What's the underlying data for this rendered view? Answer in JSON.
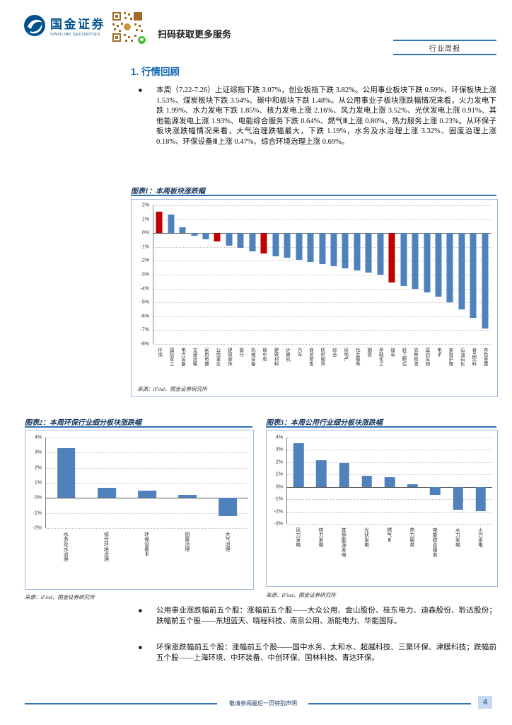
{
  "header": {
    "brand_cn": "国金证券",
    "brand_en": "SINOLINK SECURITIES",
    "qr_caption": "扫码获取更多服务",
    "report_type": "行业周报"
  },
  "section_title": "1. 行情回顾",
  "bullet_char": "■",
  "paragraphs": {
    "market_review": "本周（7.22-7.26）上证综指下跌 3.07%，创业板指下跌 3.82%。公用事业板块下跌 0.59%、环保板块上涨 1.53%、煤炭板块下跌 3.54%、碳中和板块下跌 1.48%。从公用事业子板块涨跌幅情况来看，火力发电下跌 1.99%、水力发电下跌 1.85%、核力发电上涨 2.16%、风力发电上涨 3.52%、光伏发电上涨 0.91%、其他能源发电上涨 1.93%、电能综合服务下跌 0.64%、燃气Ⅲ上涨 0.80%、热力服务上涨 0.23%。从环保子板块涨跌幅情况来看，大气治理跌幅最大，下跌 1.19%，水务及水治理上涨 3.32%、固废治理上涨 0.18%、环保设备Ⅲ上涨 0.47%、综合环境治理上涨 0.69%。",
    "utilities_stocks": "公用事业涨跌幅前五个股：涨幅前五个股——大众公用、金山股份、桂东电力、迪森股份、聆达股份；跌幅前五个股——东旭蓝天、晓程科技、南京公用、浙能电力、华能国际。",
    "environment_stocks": "环保涨跌幅前五个股：涨幅前五个股——国中水务、太和水、超越科技、三聚环保、津膜科技；跌幅前五个股——上海环境、中环装备、中创环保、国林科技、青达环保。"
  },
  "figures": {
    "fig1_title": "图表1：本周板块涨跌幅",
    "fig2_title": "图表2：本周环保行业细分板块涨跌幅",
    "fig3_title": "图表3：本周公用行业细分板块涨跌幅",
    "source": "来源：iFind，国金证券研究所"
  },
  "footer": {
    "disclaimer": "敬请参阅最后一页特别声明",
    "page_number": "4"
  },
  "colors": {
    "bar_blue": "#4F81BD",
    "bar_red": "#C00000",
    "accent_blue": "#2E74B5",
    "brand_blue": "#00508C"
  },
  "chart_data": [
    {
      "id": "fig1",
      "type": "bar",
      "title": "本周板块涨跌幅",
      "ylim": [
        -8,
        2
      ],
      "yticks": [
        2,
        1,
        0,
        -1,
        -2,
        -3,
        -4,
        -5,
        -6,
        -7,
        -8
      ],
      "grid": true,
      "legend": false,
      "categories": [
        "环保",
        "国防军工",
        "电力设备",
        "交通运输",
        "家用电器",
        "公用事业",
        "建筑装饰",
        "银行",
        "机械设备",
        "碳中和",
        "建筑材料",
        "计算机",
        "汽车",
        "商贸零售",
        "纺织服饰",
        "综合",
        "房地产",
        "社会服务",
        "钢铁",
        "基础化工",
        "煤炭",
        "轻工制造",
        "农林牧渔",
        "医药生物",
        "电子",
        "美容护理",
        "石油石化",
        "食品饮料",
        "有色金属"
      ],
      "values": [
        1.53,
        1.35,
        0.4,
        -0.2,
        -0.45,
        -0.59,
        -0.9,
        -1.05,
        -1.3,
        -1.48,
        -1.65,
        -1.8,
        -1.95,
        -2.1,
        -2.25,
        -2.4,
        -2.55,
        -2.7,
        -2.85,
        -3.0,
        -3.54,
        -3.8,
        -4.0,
        -4.3,
        -4.6,
        -5.0,
        -5.5,
        -6.1,
        -6.9
      ],
      "highlight_indices": [
        0,
        5,
        9,
        20
      ]
    },
    {
      "id": "fig2",
      "type": "bar",
      "title": "本周环保行业细分板块涨跌幅",
      "ylim": [
        -2,
        4
      ],
      "yticks": [
        4,
        3,
        2,
        1,
        0,
        -1,
        -2
      ],
      "grid": true,
      "legend": false,
      "categories": [
        "水务及水治理",
        "综合环境治理",
        "环保设备Ⅲ",
        "固废治理",
        "大气治理"
      ],
      "values": [
        3.32,
        0.69,
        0.47,
        0.18,
        -1.19
      ],
      "highlight_indices": []
    },
    {
      "id": "fig3",
      "type": "bar",
      "title": "本周公用行业细分板块涨跌幅",
      "ylim": [
        -3,
        4
      ],
      "yticks": [
        4,
        3,
        2,
        1,
        0,
        -1,
        -2,
        -3
      ],
      "grid": true,
      "legend": false,
      "categories": [
        "风力发电",
        "核力发电",
        "其他能源发电",
        "光伏发电",
        "燃气Ⅲ",
        "热力服务",
        "电能综合服务",
        "水力发电",
        "火力发电"
      ],
      "values": [
        3.52,
        2.16,
        1.93,
        0.91,
        0.8,
        0.23,
        -0.64,
        -1.85,
        -1.99
      ],
      "highlight_indices": []
    }
  ]
}
